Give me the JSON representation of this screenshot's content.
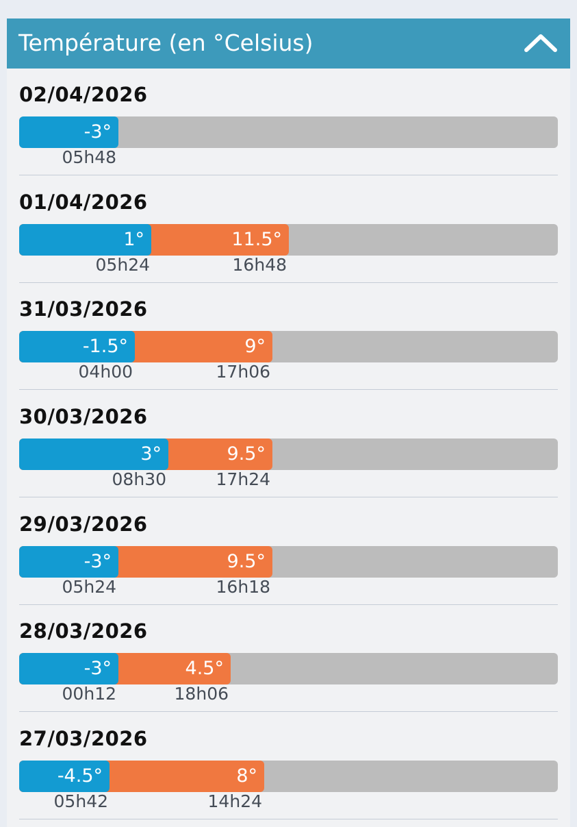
{
  "header": {
    "title": "Température (en °Celsius)",
    "collapse_icon": "chevron-up-icon"
  },
  "colors": {
    "accent": "#3d9abb",
    "min_bar": "#139bd2",
    "max_bar": "#f07840",
    "track": "#bcbcbc"
  },
  "days": [
    {
      "date": "02/04/2026",
      "min_label": "-3°",
      "min_time": "05h48",
      "max_label": "",
      "max_time": ""
    },
    {
      "date": "01/04/2026",
      "min_label": "1°",
      "min_time": "05h24",
      "max_label": "11.5°",
      "max_time": "16h48"
    },
    {
      "date": "31/03/2026",
      "min_label": "-1.5°",
      "min_time": "04h00",
      "max_label": "9°",
      "max_time": "17h06"
    },
    {
      "date": "30/03/2026",
      "min_label": "3°",
      "min_time": "08h30",
      "max_label": "9.5°",
      "max_time": "17h24"
    },
    {
      "date": "29/03/2026",
      "min_label": "-3°",
      "min_time": "05h24",
      "max_label": "9.5°",
      "max_time": "16h18"
    },
    {
      "date": "28/03/2026",
      "min_label": "-3°",
      "min_time": "00h12",
      "max_label": "4.5°",
      "max_time": "18h06"
    },
    {
      "date": "27/03/2026",
      "min_label": "-4.5°",
      "min_time": "05h42",
      "max_label": "8°",
      "max_time": "14h24"
    }
  ]
}
